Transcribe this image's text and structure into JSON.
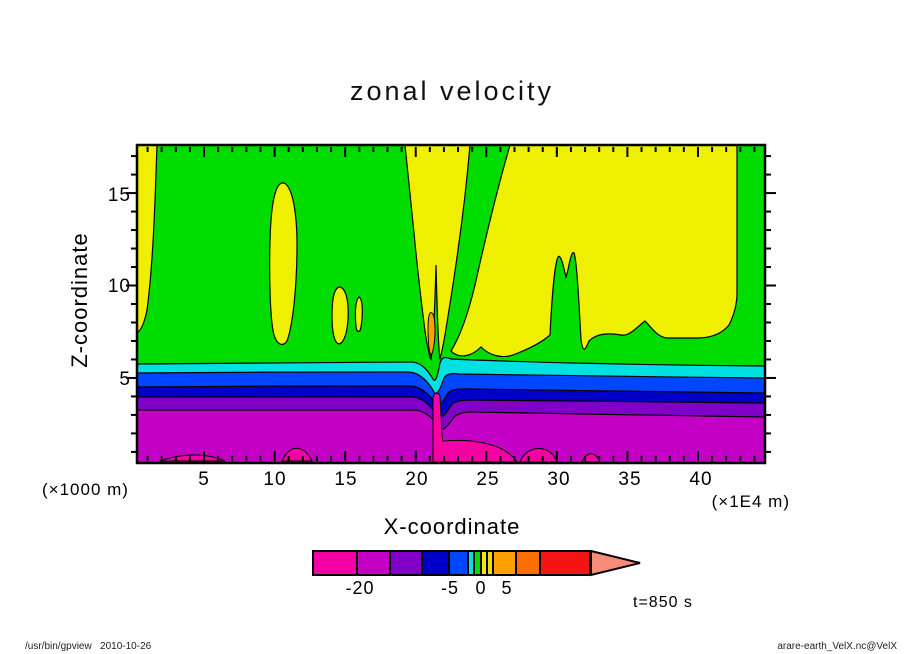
{
  "header": {
    "title": "zonal velocity"
  },
  "chart_data": {
    "type": "contour",
    "title": "zonal velocity",
    "variable": "VelX (zonal velocity)",
    "xlabel": "X-coordinate",
    "x_unit_label": "(×1E4 m)",
    "x_ticks": [
      5,
      10,
      15,
      20,
      25,
      30,
      35,
      40
    ],
    "x_minor_tick_step": 1,
    "x_range_approx": [
      0.25,
      44.75
    ],
    "ylabel": "Z-coordinate",
    "y_unit_label": "(×1000 m)",
    "y_ticks": [
      5,
      10,
      15
    ],
    "y_minor_tick_step": 1,
    "y_range_approx": [
      0.4,
      17.6
    ],
    "grid": false,
    "time_label": "t=850 s",
    "colorbar": {
      "orientation": "horizontal",
      "labels": [
        "-20",
        "-5",
        "0",
        "5"
      ],
      "label_values": [
        -20,
        -5,
        0,
        5
      ],
      "overflow_arrow_color": "#F78C78",
      "segments": [
        {
          "color": "#F500A5",
          "level_range_est": [
            -25,
            -20
          ]
        },
        {
          "color": "#C300C3",
          "level_range_est": [
            -20,
            -15
          ]
        },
        {
          "color": "#8000C8",
          "level_range_est": [
            -15,
            -10
          ]
        },
        {
          "color": "#0000C8",
          "level_range_est": [
            -10,
            -5
          ]
        },
        {
          "color": "#0046FF",
          "level_range_est": [
            -5,
            -2
          ]
        },
        {
          "color": "#00E1E1",
          "level_range_est": [
            -2,
            -1
          ]
        },
        {
          "color": "#00DC00",
          "level_range_est": [
            -1,
            0
          ]
        },
        {
          "color": "#EBEB00",
          "level_range_est": [
            0,
            1
          ]
        },
        {
          "color": "#F0DC00",
          "level_range_est": [
            1,
            2
          ]
        },
        {
          "color": "#FFA000",
          "level_range_est": [
            2,
            5
          ]
        },
        {
          "color": "#FF6E00",
          "level_range_est": [
            5,
            10
          ]
        },
        {
          "color": "#F51414",
          "level_range_est": [
            10,
            20
          ]
        }
      ]
    },
    "field_features": [
      "lower quarter of domain: strong negative zonal flow in horizontal layers (magenta band with bright pink patches < -20 near the bottom)",
      "thin stacked layers near z=4-5 km: purple, dark blue, blue and cyan bands (-15 to -1)",
      "upper two thirds: weak flow; green (-1..0) on the left half and yellow (0..1) on the right half and along the left edge",
      "yellow plumes descend near x=10-16 and x=19-23 (x1E4 m); small orange core (2..5) near x=21",
      "sharp wave-like disturbance distorts all layers near x=21",
      "green columns embedded in the yellow region near x=24, x=29-31 and at the right edge"
    ]
  },
  "annotations": {
    "time_label": "t=850 s"
  },
  "footer": {
    "left": "/usr/bin/gpview   2010-10-26",
    "right": "arare-earth_VelX.nc@VelX"
  },
  "palette": {
    "pink": "#F500A5",
    "magenta": "#C300C3",
    "purple": "#8000C8",
    "darkblue": "#0000C8",
    "blue": "#0046FF",
    "cyan": "#00E1E1",
    "green": "#00DC00",
    "yellow": "#EFEF00",
    "orange": "#FFA000",
    "orange2": "#FF6E00",
    "red": "#F51414",
    "salmon": "#F78C78",
    "axis": "#000000"
  }
}
